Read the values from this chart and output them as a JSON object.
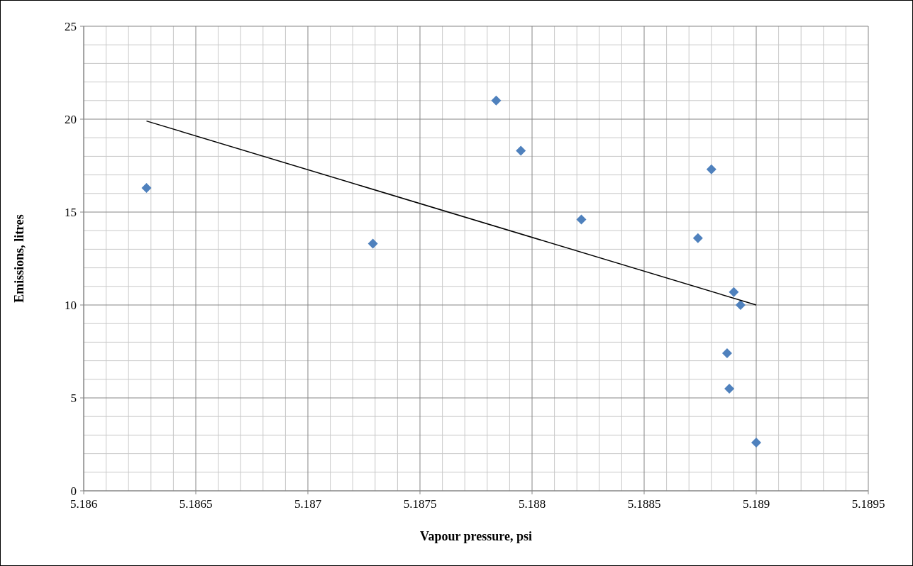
{
  "chart_data": {
    "type": "scatter",
    "xlabel": "Vapour pressure, psi",
    "ylabel": "Emissions, litres",
    "xlim": [
      5.186,
      5.1895
    ],
    "xticks": [
      5.186,
      5.1865,
      5.187,
      5.1875,
      5.188,
      5.1885,
      5.189,
      5.1895
    ],
    "ylim": [
      0,
      25
    ],
    "yticks": [
      0,
      5,
      10,
      15,
      20,
      25
    ],
    "grid": true,
    "marker": "diamond",
    "series": [
      {
        "color": "#4f81bd",
        "x": [
          5.18628,
          5.18729,
          5.18784,
          5.18795,
          5.18822,
          5.18874,
          5.1888,
          5.1889,
          5.18893,
          5.18887,
          5.18888,
          5.189
        ],
        "values": [
          16.3,
          13.3,
          21.0,
          18.3,
          14.6,
          13.6,
          17.3,
          10.7,
          10.0,
          7.4,
          5.5,
          2.6
        ]
      },
      {
        "type": "line",
        "color": "#000000",
        "marker": "none",
        "x": [
          5.18628,
          5.189
        ],
        "values": [
          19.9,
          10.0
        ]
      }
    ]
  }
}
